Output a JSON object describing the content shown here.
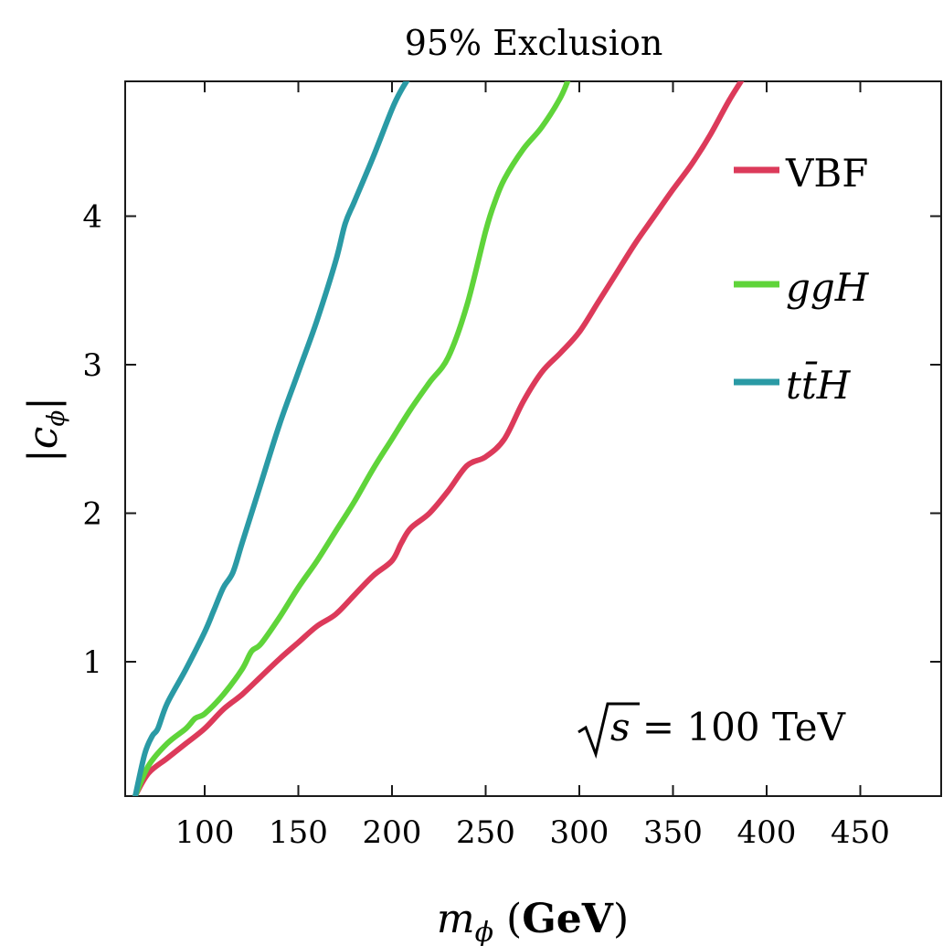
{
  "chart_data": {
    "type": "line",
    "title": "95% Exclusion",
    "xlabel": "m_ϕ (GeV)",
    "ylabel": "|c_ϕ|",
    "xlim": [
      63,
      499
    ],
    "ylim": [
      0.1,
      4.9
    ],
    "xticks": [
      100,
      150,
      200,
      250,
      300,
      350,
      400,
      450
    ],
    "yticks": [
      1,
      2,
      3,
      4
    ],
    "grid": false,
    "legend": {
      "position": "top-right"
    },
    "annotation": "√s = 100 TeV",
    "series": [
      {
        "name": "VBF",
        "color": "#dc3a5a",
        "x": [
          63,
          70,
          80,
          90,
          100,
          110,
          120,
          130,
          140,
          150,
          160,
          170,
          180,
          190,
          200,
          205,
          210,
          220,
          230,
          240,
          250,
          260,
          270,
          280,
          290,
          300,
          310,
          320,
          330,
          340,
          350,
          360,
          370,
          380,
          390
        ],
        "y": [
          0.1,
          0.25,
          0.35,
          0.45,
          0.55,
          0.68,
          0.78,
          0.9,
          1.02,
          1.13,
          1.24,
          1.32,
          1.45,
          1.58,
          1.68,
          1.8,
          1.9,
          2.0,
          2.15,
          2.32,
          2.38,
          2.5,
          2.75,
          2.95,
          3.08,
          3.22,
          3.42,
          3.62,
          3.82,
          4.0,
          4.18,
          4.35,
          4.55,
          4.78,
          4.98
        ]
      },
      {
        "name": "ggH",
        "color": "#5fd43a",
        "x": [
          63,
          70,
          80,
          90,
          95,
          100,
          110,
          120,
          125,
          130,
          140,
          150,
          160,
          170,
          180,
          190,
          200,
          210,
          220,
          230,
          240,
          250,
          255,
          260,
          270,
          280,
          290,
          295
        ],
        "y": [
          0.1,
          0.3,
          0.45,
          0.55,
          0.62,
          0.65,
          0.78,
          0.95,
          1.07,
          1.12,
          1.3,
          1.5,
          1.68,
          1.88,
          2.08,
          2.3,
          2.5,
          2.7,
          2.88,
          3.05,
          3.4,
          3.9,
          4.1,
          4.25,
          4.45,
          4.6,
          4.8,
          4.95
        ]
      },
      {
        "name": "tt̄H",
        "color": "#2a9aa5",
        "x": [
          63,
          68,
          72,
          75,
          80,
          90,
          100,
          105,
          110,
          115,
          120,
          130,
          140,
          150,
          160,
          170,
          175,
          180,
          190,
          200,
          205,
          210,
          213
        ],
        "y": [
          0.1,
          0.38,
          0.5,
          0.55,
          0.72,
          0.95,
          1.2,
          1.35,
          1.5,
          1.6,
          1.8,
          2.2,
          2.6,
          2.95,
          3.3,
          3.7,
          3.95,
          4.1,
          4.4,
          4.72,
          4.85,
          4.95,
          5.0
        ]
      }
    ]
  }
}
